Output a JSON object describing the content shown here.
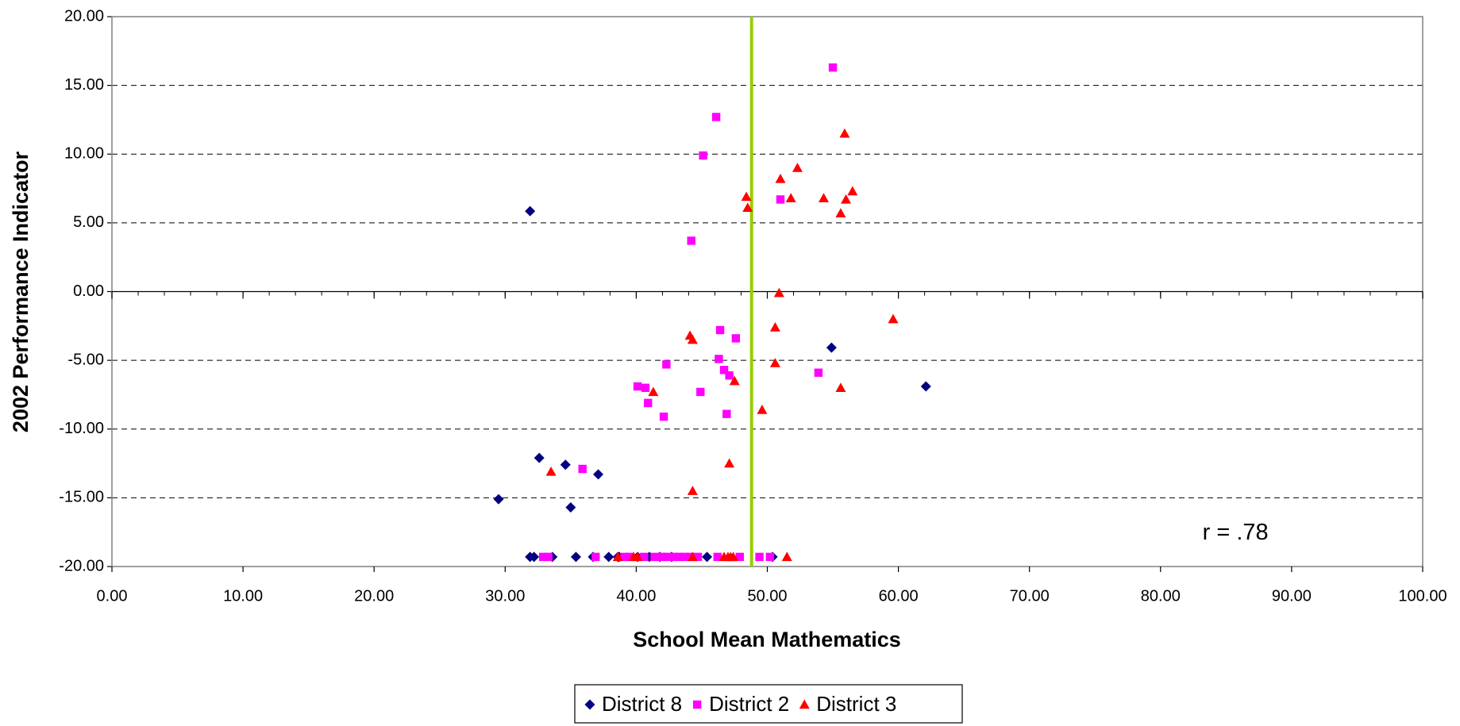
{
  "chart_data": {
    "type": "scatter",
    "xlabel": "School Mean Mathematics",
    "ylabel": "2002 Performance Indicator",
    "annotation": {
      "text": "r = .78",
      "x": 83.2,
      "y": -17.6
    },
    "reference_line": {
      "x": 48.8,
      "color": "#99cc00"
    },
    "xlim": [
      0,
      100
    ],
    "ylim": [
      -20,
      20
    ],
    "xticks": [
      {
        "value": 0,
        "label": "0.00"
      },
      {
        "value": 10,
        "label": "10.00"
      },
      {
        "value": 20,
        "label": "20.00"
      },
      {
        "value": 30,
        "label": "30.00"
      },
      {
        "value": 40,
        "label": "40.00"
      },
      {
        "value": 50,
        "label": "50.00"
      },
      {
        "value": 60,
        "label": "60.00"
      },
      {
        "value": 70,
        "label": "70.00"
      },
      {
        "value": 80,
        "label": "80.00"
      },
      {
        "value": 90,
        "label": "90.00"
      },
      {
        "value": 100,
        "label": "100.00"
      }
    ],
    "yticks": [
      {
        "value": -20,
        "label": "-20.00"
      },
      {
        "value": -15,
        "label": "-15.00"
      },
      {
        "value": -10,
        "label": "-10.00"
      },
      {
        "value": -5,
        "label": "-5.00"
      },
      {
        "value": 0,
        "label": "0.00"
      },
      {
        "value": 5,
        "label": "5.00"
      },
      {
        "value": 10,
        "label": "10.00"
      },
      {
        "value": 15,
        "label": "15.00"
      },
      {
        "value": 20,
        "label": "20.00"
      }
    ],
    "grid": true,
    "legend": "bottom",
    "series": [
      {
        "name": "District 8",
        "color": "#000080",
        "marker": "diamond",
        "x": [
          31.9,
          54.9,
          62.1,
          32.6,
          34.6,
          37.1,
          29.5,
          35.0,
          31.9,
          32.2,
          33.6,
          35.4,
          36.7,
          37.9,
          38.6,
          38.7,
          40.1,
          41.0,
          41.8,
          42.7,
          45.4,
          50.4
        ],
        "values": [
          5.85,
          -4.08,
          -6.9,
          -12.1,
          -12.6,
          -13.3,
          -15.1,
          -15.7,
          -19.3,
          -19.3,
          -19.3,
          -19.3,
          -19.3,
          -19.3,
          -19.3,
          -19.3,
          -19.3,
          -19.3,
          -19.3,
          -19.3,
          -19.3,
          -19.3
        ]
      },
      {
        "name": "District 2",
        "color": "#ff00ff",
        "marker": "square",
        "x": [
          55.0,
          46.1,
          45.1,
          51.0,
          44.2,
          46.4,
          47.6,
          42.3,
          46.3,
          46.7,
          47.1,
          40.1,
          40.7,
          53.9,
          44.9,
          40.9,
          46.9,
          42.1,
          35.9,
          32.9,
          33.3,
          36.9,
          39.1,
          39.5,
          40.6,
          41.4,
          42.0,
          42.3,
          42.9,
          43.3,
          43.7,
          44.1,
          44.7,
          46.2,
          47.9,
          49.4,
          50.2
        ],
        "values": [
          16.3,
          12.7,
          9.9,
          6.7,
          3.7,
          -2.8,
          -3.4,
          -5.3,
          -4.9,
          -5.7,
          -6.1,
          -6.9,
          -7.0,
          -5.9,
          -7.3,
          -8.1,
          -8.9,
          -9.1,
          -12.9,
          -19.3,
          -19.3,
          -19.3,
          -19.3,
          -19.3,
          -19.3,
          -19.3,
          -19.3,
          -19.3,
          -19.3,
          -19.3,
          -19.3,
          -19.3,
          -19.3,
          -19.3,
          -19.3,
          -19.3,
          -19.3
        ]
      },
      {
        "name": "District 3",
        "color": "#ff0000",
        "marker": "triangle",
        "x": [
          55.9,
          52.3,
          51.0,
          48.4,
          51.8,
          54.3,
          56.5,
          48.5,
          55.6,
          56.0,
          50.9,
          59.6,
          44.1,
          44.3,
          50.6,
          50.6,
          47.5,
          41.3,
          55.6,
          49.6,
          47.1,
          33.5,
          44.3,
          38.6,
          39.8,
          40.1,
          44.3,
          46.7,
          47.0,
          47.2,
          47.4,
          51.5
        ],
        "values": [
          11.5,
          9.0,
          8.2,
          6.9,
          6.8,
          6.8,
          7.3,
          6.1,
          5.7,
          6.7,
          -0.1,
          -2.0,
          -3.2,
          -3.5,
          -2.6,
          -5.2,
          -6.5,
          -7.3,
          -7.0,
          -8.6,
          -12.5,
          -13.1,
          -14.5,
          -19.3,
          -19.3,
          -19.3,
          -19.3,
          -19.3,
          -19.3,
          -19.3,
          -19.3,
          -19.3
        ]
      }
    ]
  }
}
